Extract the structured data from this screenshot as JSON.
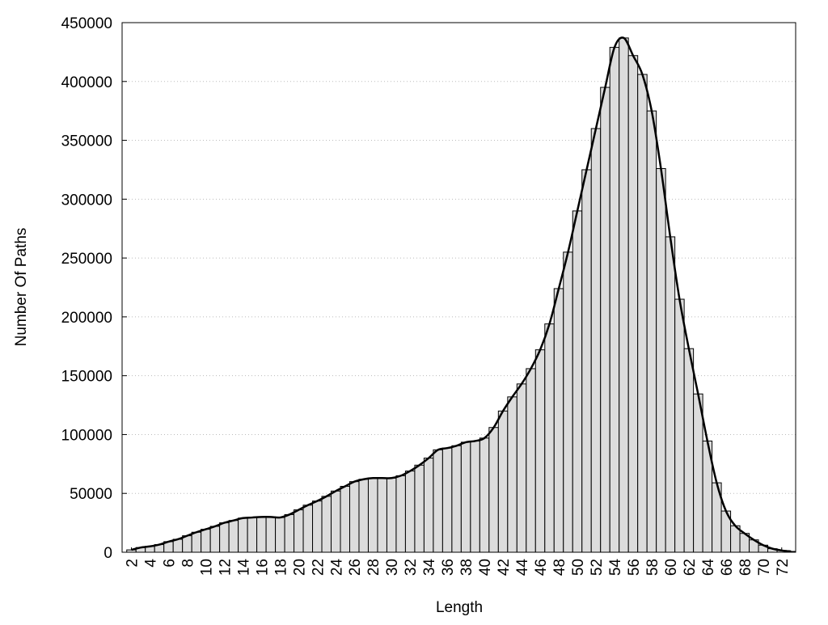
{
  "chart_data": {
    "type": "bar",
    "x_label": "Length",
    "y_label": "Number Of Paths",
    "x": [
      2,
      3,
      4,
      5,
      6,
      7,
      8,
      9,
      10,
      11,
      12,
      13,
      14,
      15,
      16,
      17,
      18,
      19,
      20,
      21,
      22,
      23,
      24,
      25,
      26,
      27,
      28,
      29,
      30,
      31,
      32,
      33,
      34,
      35,
      36,
      37,
      38,
      39,
      40,
      41,
      42,
      43,
      44,
      45,
      46,
      47,
      48,
      49,
      50,
      51,
      52,
      53,
      54,
      55,
      56,
      57,
      58,
      59,
      60,
      61,
      62,
      63,
      64,
      65,
      66,
      67,
      68,
      69,
      70,
      71,
      72,
      73
    ],
    "values": [
      2000,
      4000,
      5000,
      6500,
      9000,
      11000,
      14000,
      17000,
      19500,
      22000,
      25000,
      27000,
      29000,
      29500,
      30000,
      30000,
      29500,
      32000,
      36000,
      40000,
      43500,
      47500,
      52000,
      56000,
      60000,
      62000,
      63000,
      63000,
      63000,
      65000,
      69000,
      74000,
      80000,
      87000,
      88500,
      90500,
      93500,
      94500,
      97000,
      106000,
      120000,
      132000,
      143000,
      156000,
      172000,
      194000,
      224000,
      255000,
      290000,
      325000,
      360000,
      395000,
      429000,
      437000,
      422000,
      406000,
      375000,
      326000,
      268000,
      215000,
      173000,
      134500,
      94500,
      59000,
      35000,
      22500,
      16000,
      10500,
      6000,
      3000,
      1500,
      700
    ],
    "color": "#dcdcdc",
    "edge_color": "#000000",
    "smooth_line": true,
    "line_color": "#000000",
    "xlim": [
      1,
      73.5
    ],
    "xticks": [
      2,
      4,
      6,
      8,
      10,
      12,
      14,
      16,
      18,
      20,
      22,
      24,
      26,
      28,
      30,
      32,
      34,
      36,
      38,
      40,
      42,
      44,
      46,
      48,
      50,
      52,
      54,
      56,
      58,
      60,
      62,
      64,
      66,
      68,
      70,
      72
    ],
    "ylim": [
      0,
      450000
    ],
    "yticks": [
      0,
      50000,
      100000,
      150000,
      200000,
      250000,
      300000,
      350000,
      400000,
      450000
    ],
    "grid": true
  }
}
